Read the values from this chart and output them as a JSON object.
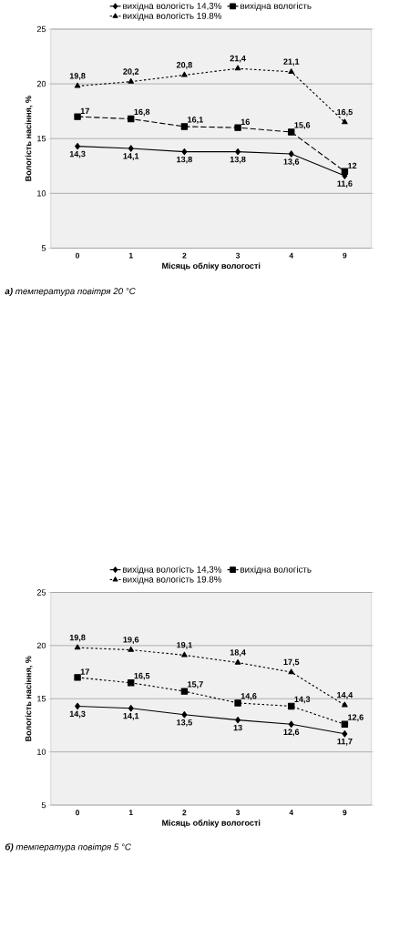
{
  "chart_data": [
    {
      "type": "line",
      "categories": [
        "0",
        "1",
        "2",
        "3",
        "4",
        "9"
      ],
      "xlabel": "Місяць обліку вологості",
      "ylabel": "Вологість насіння, %",
      "ylim": [
        5,
        25
      ],
      "yticks": [
        5,
        10,
        15,
        20,
        25
      ],
      "grid": "y",
      "legend": "top",
      "series": [
        {
          "name": "вихідна вологість 14,3%",
          "color": "#000000",
          "marker": "diamond",
          "line_style": "solid",
          "values": [
            14.3,
            14.1,
            13.8,
            13.8,
            13.6,
            11.6
          ],
          "value_labels": [
            "14,3",
            "14,1",
            "13,8",
            "13,8",
            "13,6",
            "11,6"
          ]
        },
        {
          "name": "вихідна вологість",
          "color": "#000000",
          "marker": "square",
          "line_style": "dashed",
          "values": [
            17,
            16.8,
            16.1,
            16,
            15.6,
            12
          ],
          "value_labels": [
            "17",
            "16,8",
            "16,1",
            "16",
            "15,6",
            "12"
          ]
        },
        {
          "name": "вихідна вологість 19.8%",
          "color": "#000000",
          "marker": "triangle",
          "line_style": "dotted",
          "values": [
            19.8,
            20.2,
            20.8,
            21.4,
            21.1,
            16.5
          ],
          "value_labels": [
            "19,8",
            "20,2",
            "20,8",
            "21,4",
            "21,1",
            "16,5"
          ]
        }
      ],
      "annotations": [
        "**а)** температура повітря 20 °C"
      ]
    },
    {
      "type": "line",
      "categories": [
        "0",
        "1",
        "2",
        "3",
        "4",
        "9"
      ],
      "xlabel": "Місяць обліку вологості",
      "ylabel": "Вологість насіння, %",
      "ylim": [
        5,
        25
      ],
      "yticks": [
        5,
        10,
        15,
        20,
        25
      ],
      "grid": "y",
      "legend": "top",
      "series": [
        {
          "name": "вихідна вологість 14,3%",
          "color": "#000000",
          "marker": "diamond",
          "line_style": "solid",
          "values": [
            14.3,
            14.1,
            13.5,
            13,
            12.6,
            11.7
          ],
          "value_labels": [
            "14,3",
            "14,1",
            "13,5",
            "13",
            "12,6",
            "11,7"
          ]
        },
        {
          "name": "вихідна вологість",
          "color": "#000000",
          "marker": "square",
          "line_style": "dotted",
          "values": [
            17,
            16.5,
            15.7,
            14.6,
            14.3,
            12.6
          ],
          "value_labels": [
            "17",
            "16,5",
            "15,7",
            "14,6",
            "14,3",
            "12,6"
          ]
        },
        {
          "name": "вихідна вологість 19.8%",
          "color": "#000000",
          "marker": "triangle",
          "line_style": "dotted",
          "values": [
            19.8,
            19.6,
            19.1,
            18.4,
            17.5,
            14.4
          ],
          "value_labels": [
            "19,8",
            "19,6",
            "19,1",
            "18,4",
            "17,5",
            "14,4"
          ]
        }
      ],
      "annotations": [
        "**б)** температура повітря 5 °C"
      ]
    }
  ]
}
